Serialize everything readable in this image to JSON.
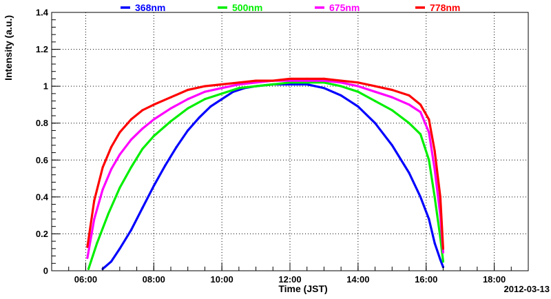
{
  "chart_data": {
    "type": "scatter",
    "xlabel": "Time (JST)",
    "ylabel": "Intensity (a.u.)",
    "date": "2012-03-13",
    "xlim": [
      "05:00",
      "19:00"
    ],
    "ylim": [
      0,
      1.4
    ],
    "x_ticks": [
      "06:00",
      "08:00",
      "10:00",
      "12:00",
      "14:00",
      "16:00",
      "18:00"
    ],
    "y_ticks": [
      "0",
      "0.2",
      "0.4",
      "0.6",
      "0.8",
      "1",
      "1.2",
      "1.4"
    ],
    "grid": true,
    "legend_position": "top",
    "series": [
      {
        "name": "368nm",
        "color": "#0000ff",
        "points": [
          [
            "06:30",
            0.01
          ],
          [
            "06:45",
            0.05
          ],
          [
            "07:00",
            0.12
          ],
          [
            "07:20",
            0.22
          ],
          [
            "07:40",
            0.34
          ],
          [
            "08:00",
            0.46
          ],
          [
            "08:20",
            0.57
          ],
          [
            "08:40",
            0.67
          ],
          [
            "09:00",
            0.76
          ],
          [
            "09:20",
            0.83
          ],
          [
            "09:40",
            0.89
          ],
          [
            "10:00",
            0.93
          ],
          [
            "10:20",
            0.97
          ],
          [
            "10:40",
            0.99
          ],
          [
            "11:00",
            1.0
          ],
          [
            "11:30",
            1.01
          ],
          [
            "12:00",
            1.01
          ],
          [
            "12:30",
            1.01
          ],
          [
            "13:00",
            0.99
          ],
          [
            "13:30",
            0.95
          ],
          [
            "14:00",
            0.89
          ],
          [
            "14:30",
            0.8
          ],
          [
            "15:00",
            0.68
          ],
          [
            "15:30",
            0.53
          ],
          [
            "15:50",
            0.4
          ],
          [
            "16:05",
            0.28
          ],
          [
            "16:15",
            0.15
          ],
          [
            "16:25",
            0.06
          ],
          [
            "16:30",
            0.02
          ]
        ]
      },
      {
        "name": "500nm",
        "color": "#00ee00",
        "points": [
          [
            "06:05",
            0.01
          ],
          [
            "06:20",
            0.15
          ],
          [
            "06:40",
            0.31
          ],
          [
            "07:00",
            0.45
          ],
          [
            "07:20",
            0.56
          ],
          [
            "07:40",
            0.66
          ],
          [
            "08:00",
            0.73
          ],
          [
            "08:30",
            0.81
          ],
          [
            "09:00",
            0.88
          ],
          [
            "09:30",
            0.93
          ],
          [
            "10:00",
            0.96
          ],
          [
            "10:30",
            0.99
          ],
          [
            "11:00",
            1.0
          ],
          [
            "11:30",
            1.01
          ],
          [
            "12:00",
            1.02
          ],
          [
            "12:30",
            1.02
          ],
          [
            "13:00",
            1.02
          ],
          [
            "13:30",
            1.0
          ],
          [
            "14:00",
            0.97
          ],
          [
            "14:30",
            0.92
          ],
          [
            "15:00",
            0.87
          ],
          [
            "15:30",
            0.8
          ],
          [
            "15:50",
            0.74
          ],
          [
            "16:05",
            0.6
          ],
          [
            "16:15",
            0.4
          ],
          [
            "16:25",
            0.18
          ],
          [
            "16:30",
            0.05
          ]
        ]
      },
      {
        "name": "675nm",
        "color": "#ff00ff",
        "points": [
          [
            "06:03",
            0.07
          ],
          [
            "06:15",
            0.28
          ],
          [
            "06:30",
            0.44
          ],
          [
            "06:45",
            0.55
          ],
          [
            "07:00",
            0.63
          ],
          [
            "07:20",
            0.71
          ],
          [
            "07:40",
            0.77
          ],
          [
            "08:00",
            0.82
          ],
          [
            "08:30",
            0.88
          ],
          [
            "09:00",
            0.93
          ],
          [
            "09:30",
            0.97
          ],
          [
            "10:00",
            0.99
          ],
          [
            "10:30",
            1.01
          ],
          [
            "11:00",
            1.02
          ],
          [
            "11:30",
            1.03
          ],
          [
            "12:00",
            1.03
          ],
          [
            "12:30",
            1.03
          ],
          [
            "13:00",
            1.03
          ],
          [
            "13:30",
            1.02
          ],
          [
            "14:00",
            1.0
          ],
          [
            "14:30",
            0.97
          ],
          [
            "15:00",
            0.94
          ],
          [
            "15:30",
            0.9
          ],
          [
            "15:50",
            0.86
          ],
          [
            "16:05",
            0.75
          ],
          [
            "16:15",
            0.55
          ],
          [
            "16:25",
            0.3
          ],
          [
            "16:30",
            0.1
          ]
        ]
      },
      {
        "name": "778nm",
        "color": "#ff0000",
        "points": [
          [
            "06:03",
            0.13
          ],
          [
            "06:15",
            0.38
          ],
          [
            "06:30",
            0.56
          ],
          [
            "06:45",
            0.67
          ],
          [
            "07:00",
            0.75
          ],
          [
            "07:20",
            0.82
          ],
          [
            "07:40",
            0.87
          ],
          [
            "08:00",
            0.9
          ],
          [
            "08:30",
            0.94
          ],
          [
            "09:00",
            0.98
          ],
          [
            "09:30",
            1.0
          ],
          [
            "10:00",
            1.01
          ],
          [
            "10:30",
            1.02
          ],
          [
            "11:00",
            1.03
          ],
          [
            "11:30",
            1.03
          ],
          [
            "12:00",
            1.04
          ],
          [
            "12:30",
            1.04
          ],
          [
            "13:00",
            1.04
          ],
          [
            "13:30",
            1.03
          ],
          [
            "14:00",
            1.02
          ],
          [
            "14:30",
            1.0
          ],
          [
            "15:00",
            0.98
          ],
          [
            "15:30",
            0.95
          ],
          [
            "15:50",
            0.9
          ],
          [
            "16:05",
            0.82
          ],
          [
            "16:15",
            0.65
          ],
          [
            "16:25",
            0.4
          ],
          [
            "16:30",
            0.12
          ]
        ]
      }
    ]
  }
}
